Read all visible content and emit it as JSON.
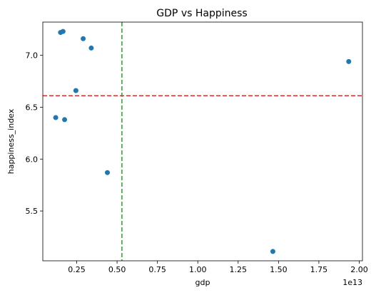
{
  "chart_data": {
    "type": "scatter",
    "title": "GDP vs Happiness",
    "xlabel": "gdp",
    "ylabel": "happiness_index",
    "x_offset_label": "1e13",
    "xlim": [
      0.04,
      2.02
    ],
    "ylim": [
      5.02,
      7.32
    ],
    "xticks": [
      0.25,
      0.5,
      0.75,
      1.0,
      1.25,
      1.5,
      1.75,
      2.0
    ],
    "xtick_labels": [
      "0.25",
      "0.50",
      "0.75",
      "1.00",
      "1.25",
      "1.50",
      "1.75",
      "2.00"
    ],
    "yticks": [
      5.5,
      6.0,
      6.5,
      7.0
    ],
    "ytick_labels": [
      "5.5",
      "6.0",
      "6.5",
      "7.0"
    ],
    "grid": false,
    "colors": {
      "point": "#1f77b4",
      "hline": "#d62728",
      "vline": "#2ca02c"
    },
    "points": [
      {
        "x": 0.12,
        "y": 6.4
      },
      {
        "x": 0.15,
        "y": 7.22
      },
      {
        "x": 0.165,
        "y": 7.23
      },
      {
        "x": 0.175,
        "y": 6.38
      },
      {
        "x": 0.245,
        "y": 6.66
      },
      {
        "x": 0.29,
        "y": 7.16
      },
      {
        "x": 0.34,
        "y": 7.07
      },
      {
        "x": 0.44,
        "y": 5.87
      },
      {
        "x": 1.465,
        "y": 5.11
      },
      {
        "x": 1.935,
        "y": 6.94
      }
    ],
    "reference_lines": [
      {
        "orientation": "horizontal",
        "value": 6.61,
        "style": "dashed",
        "color": "#d62728"
      },
      {
        "orientation": "vertical",
        "value": 0.53,
        "style": "dashed",
        "color": "#2ca02c"
      }
    ]
  }
}
